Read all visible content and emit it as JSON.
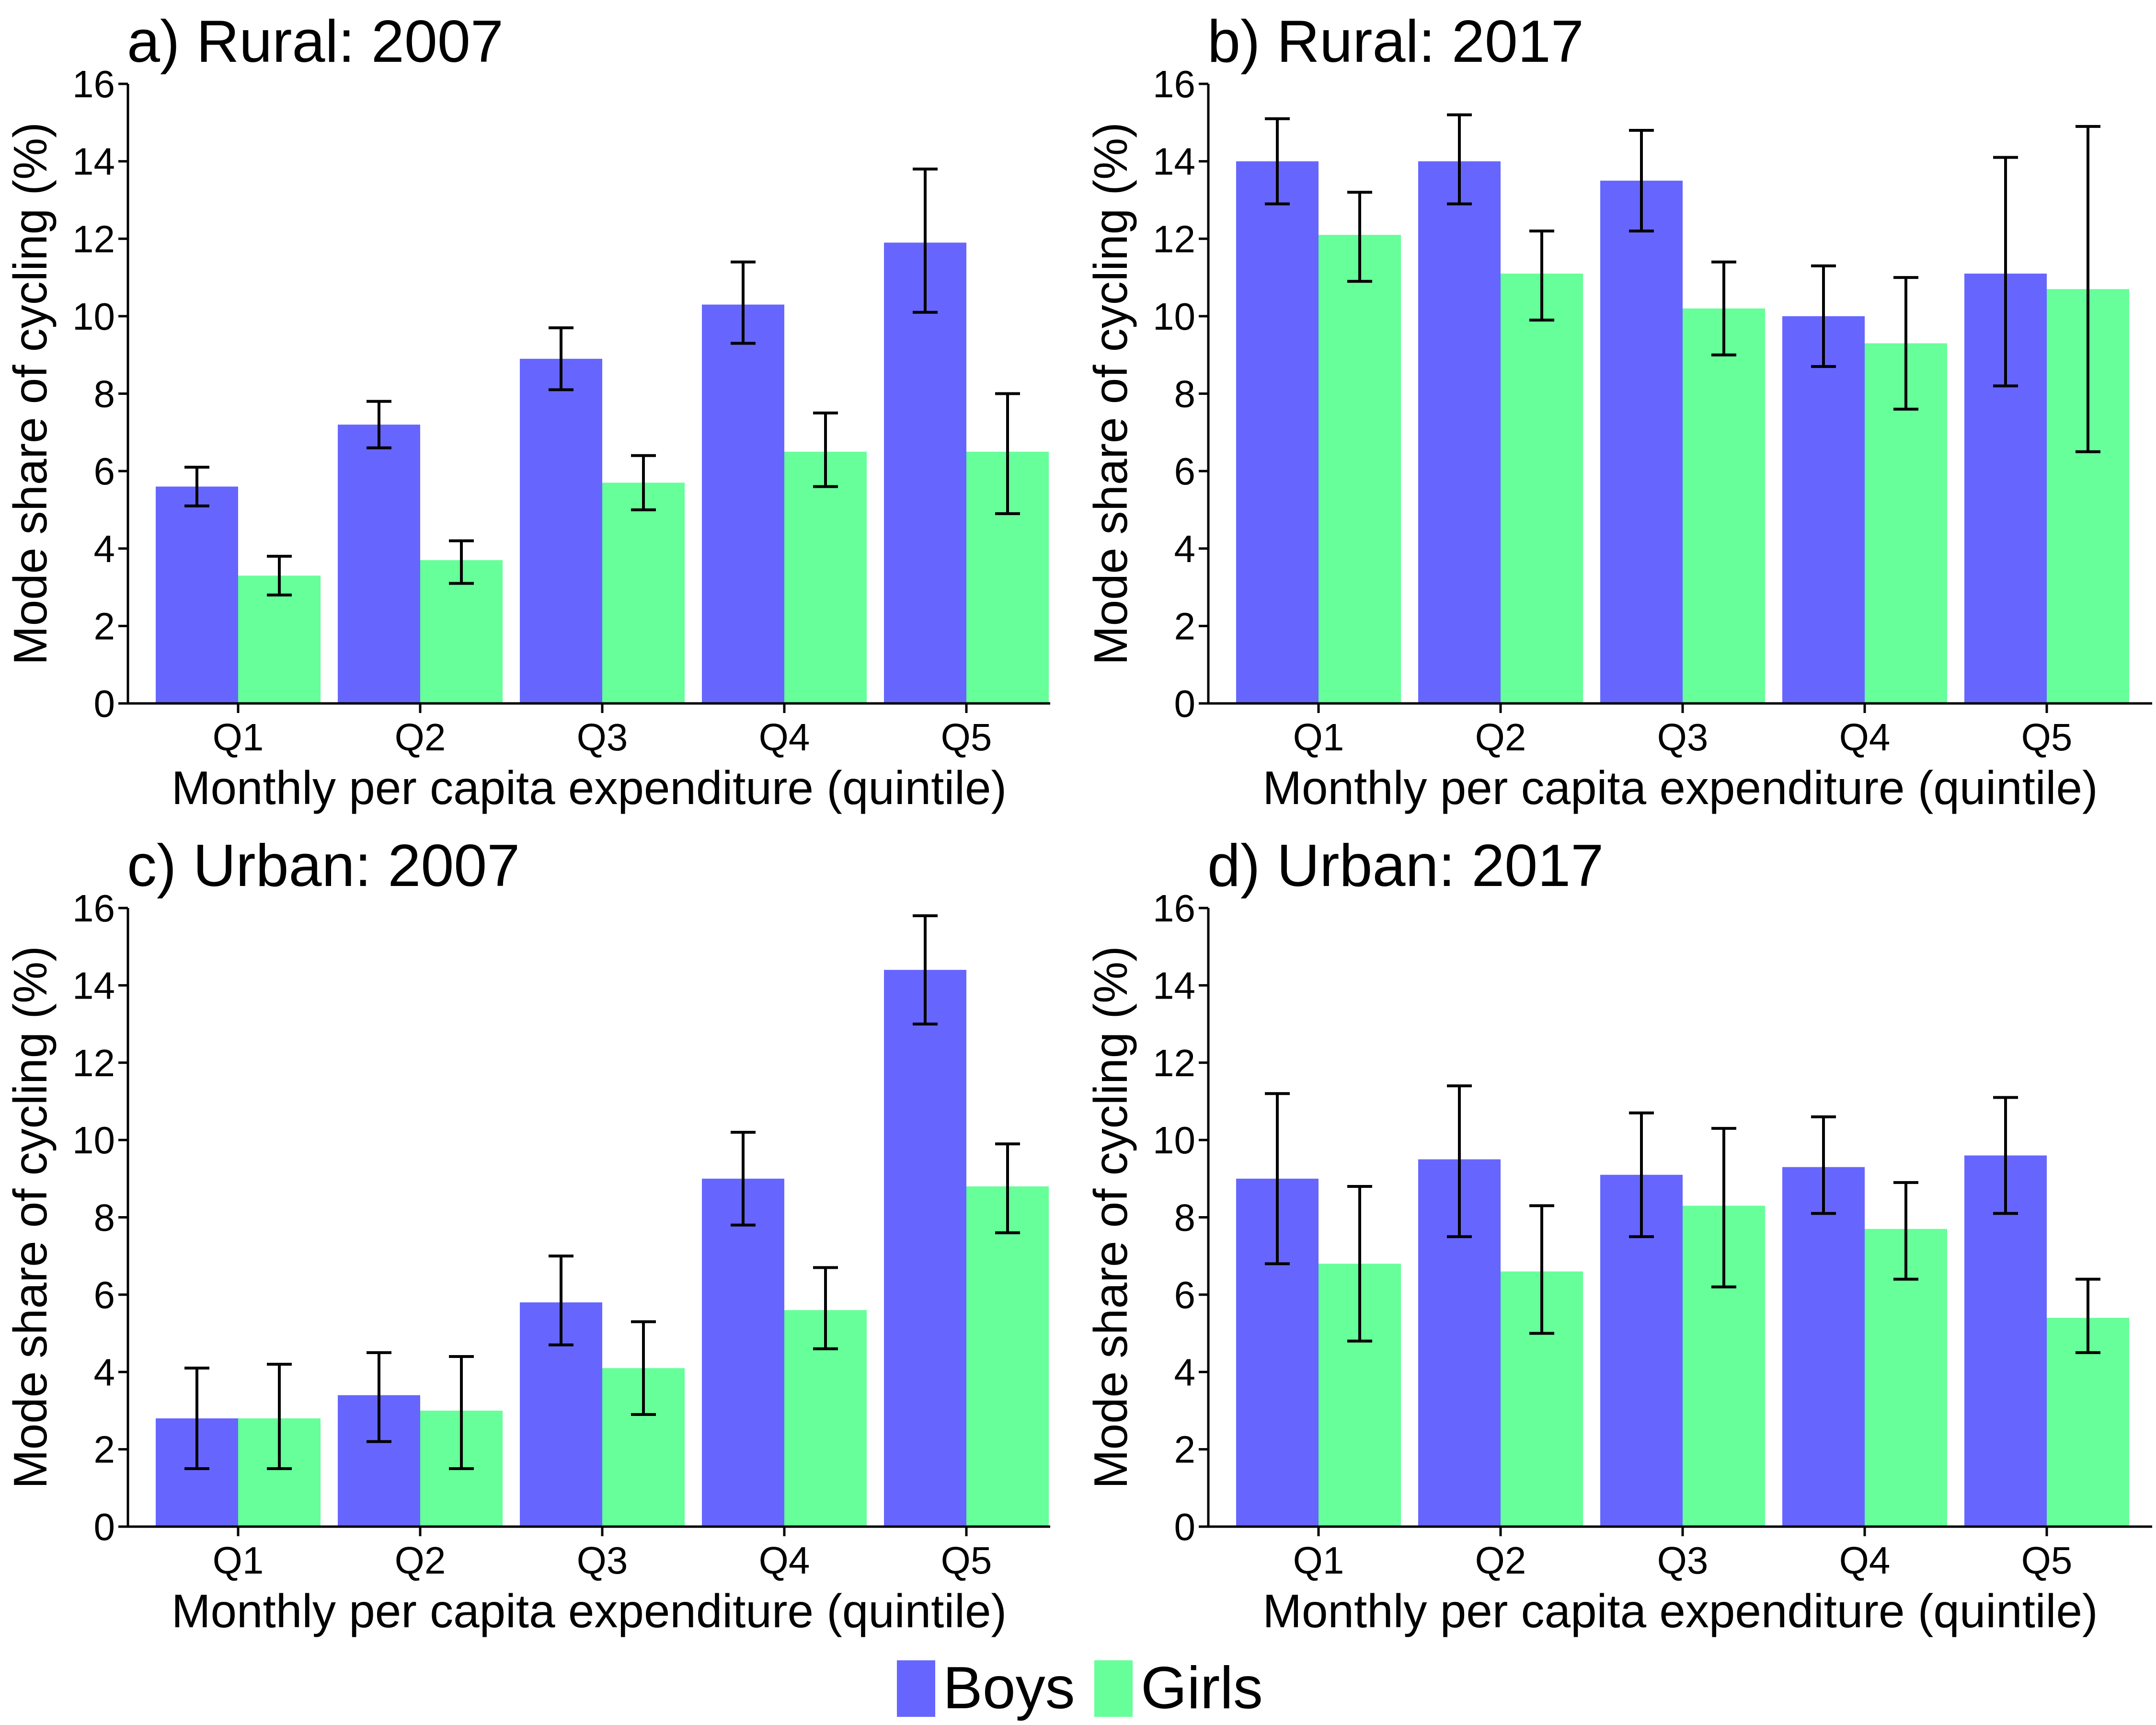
{
  "colors": {
    "boys": "#6666ff",
    "girls": "#66ff99",
    "axis": "#000000",
    "errorbar": "#000000"
  },
  "legend": {
    "boys": "Boys",
    "girls": "Girls",
    "placement": "bottom-center"
  },
  "chart_data": [
    {
      "type": "bar",
      "title": "a) Rural: 2007",
      "xlabel": "Monthly per capita expenditure (quintile)",
      "ylabel": "Mode share of cycling (%)",
      "ylim": [
        0,
        16
      ],
      "yticks": [
        "0",
        "2",
        "4",
        "6",
        "8",
        "10",
        "12",
        "14",
        "16"
      ],
      "categories": [
        "Q1",
        "Q2",
        "Q3",
        "Q4",
        "Q5"
      ],
      "series": [
        {
          "name": "Boys",
          "values": [
            5.6,
            7.2,
            8.9,
            10.3,
            11.9
          ],
          "lower": [
            5.1,
            6.6,
            8.1,
            9.3,
            10.1
          ],
          "upper": [
            6.1,
            7.8,
            9.7,
            11.4,
            13.8
          ]
        },
        {
          "name": "Girls",
          "values": [
            3.3,
            3.7,
            5.7,
            6.5,
            6.5
          ],
          "lower": [
            2.8,
            3.1,
            5.0,
            5.6,
            4.9
          ],
          "upper": [
            3.8,
            4.2,
            6.4,
            7.5,
            8.0
          ]
        }
      ]
    },
    {
      "type": "bar",
      "title": "b) Rural: 2017",
      "xlabel": "Monthly per capita expenditure (quintile)",
      "ylabel": "Mode share of cycling (%)",
      "ylim": [
        0,
        16
      ],
      "yticks": [
        "0",
        "2",
        "4",
        "6",
        "8",
        "10",
        "12",
        "14",
        "16"
      ],
      "categories": [
        "Q1",
        "Q2",
        "Q3",
        "Q4",
        "Q5"
      ],
      "series": [
        {
          "name": "Boys",
          "values": [
            14.0,
            14.0,
            13.5,
            10.0,
            11.1
          ],
          "lower": [
            12.9,
            12.9,
            12.2,
            8.7,
            8.2
          ],
          "upper": [
            15.1,
            15.2,
            14.8,
            11.3,
            14.1
          ]
        },
        {
          "name": "Girls",
          "values": [
            12.1,
            11.1,
            10.2,
            9.3,
            10.7
          ],
          "lower": [
            10.9,
            9.9,
            9.0,
            7.6,
            6.5
          ],
          "upper": [
            13.2,
            12.2,
            11.4,
            11.0,
            14.9
          ]
        }
      ]
    },
    {
      "type": "bar",
      "title": "c) Urban: 2007",
      "xlabel": "Monthly per capita expenditure (quintile)",
      "ylabel": "Mode share of cycling (%)",
      "ylim": [
        0,
        16
      ],
      "yticks": [
        "0",
        "2",
        "4",
        "6",
        "8",
        "10",
        "12",
        "14",
        "16"
      ],
      "categories": [
        "Q1",
        "Q2",
        "Q3",
        "Q4",
        "Q5"
      ],
      "series": [
        {
          "name": "Boys",
          "values": [
            2.8,
            3.4,
            5.8,
            9.0,
            14.4
          ],
          "lower": [
            1.5,
            2.2,
            4.7,
            7.8,
            13.0
          ],
          "upper": [
            4.1,
            4.5,
            7.0,
            10.2,
            15.8
          ]
        },
        {
          "name": "Girls",
          "values": [
            2.8,
            3.0,
            4.1,
            5.6,
            8.8
          ],
          "lower": [
            1.5,
            1.5,
            2.9,
            4.6,
            7.6
          ],
          "upper": [
            4.2,
            4.4,
            5.3,
            6.7,
            9.9
          ]
        }
      ]
    },
    {
      "type": "bar",
      "title": "d) Urban: 2017",
      "xlabel": "Monthly per capita expenditure (quintile)",
      "ylabel": "Mode share of cycling (%)",
      "ylim": [
        0,
        16
      ],
      "yticks": [
        "0",
        "2",
        "4",
        "6",
        "8",
        "10",
        "12",
        "14",
        "16"
      ],
      "categories": [
        "Q1",
        "Q2",
        "Q3",
        "Q4",
        "Q5"
      ],
      "series": [
        {
          "name": "Boys",
          "values": [
            9.0,
            9.5,
            9.1,
            9.3,
            9.6
          ],
          "lower": [
            6.8,
            7.5,
            7.5,
            8.1,
            8.1
          ],
          "upper": [
            11.2,
            11.4,
            10.7,
            10.6,
            11.1
          ]
        },
        {
          "name": "Girls",
          "values": [
            6.8,
            6.6,
            8.3,
            7.7,
            5.4
          ],
          "lower": [
            4.8,
            5.0,
            6.2,
            6.4,
            4.5
          ],
          "upper": [
            8.8,
            8.3,
            10.3,
            8.9,
            6.4
          ]
        }
      ]
    }
  ]
}
